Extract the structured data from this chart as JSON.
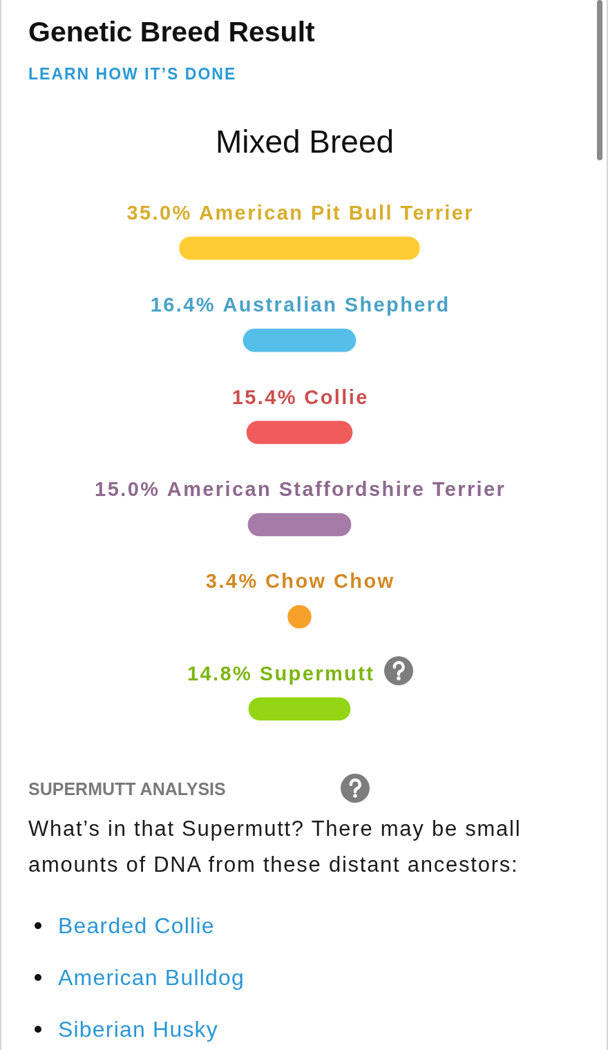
{
  "chart_data": {
    "type": "other",
    "title": "Genetic Breed Result",
    "subtitle": "Mixed Breed",
    "categories": [
      "American Pit Bull Terrier",
      "Australian Shepherd",
      "Collie",
      "American Staffordshire Terrier",
      "Chow Chow",
      "Supermutt"
    ],
    "values": [
      35.0,
      16.4,
      15.4,
      15.0,
      3.4,
      14.8
    ],
    "colors": [
      "#fecc34",
      "#56bfe9",
      "#f05c5c",
      "#a67ba8",
      "#f7a12a",
      "#93d616"
    ],
    "value_labels": [
      "35.0%",
      "16.4%",
      "15.4%",
      "15.0%",
      "3.4%",
      "14.8%"
    ],
    "annotations": [
      "LEARN HOW IT’S DONE",
      "SUPERMUTT ANALYSIS",
      "What’s in that Supermutt? There may be small amounts of DNA from these distant ancestors:",
      "Bearded Collie",
      "American Bulldog",
      "Siberian Husky"
    ]
  }
}
